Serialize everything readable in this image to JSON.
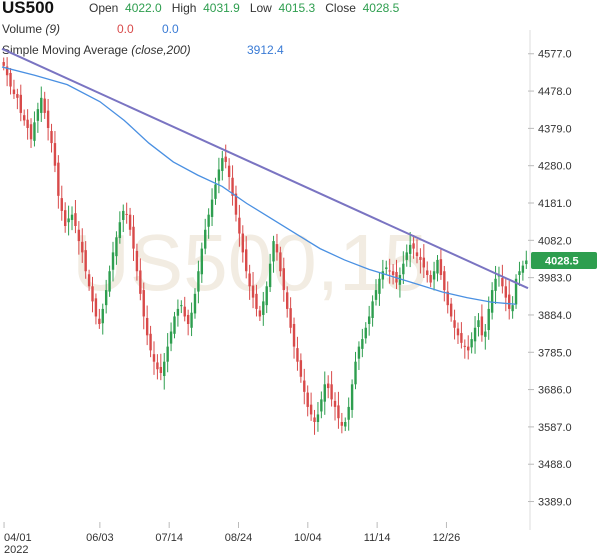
{
  "header": {
    "symbol": "US500",
    "open_label": "Open",
    "open_value": "4022.0",
    "high_label": "High",
    "high_value": "4031.9",
    "low_label": "Low",
    "low_value": "4015.3",
    "close_label": "Close",
    "close_value": "4028.5",
    "volume_label": "Volume",
    "volume_param": "(9)",
    "volume_value_1": "0.0",
    "volume_value_2": "0.0",
    "sma_label": "Simple Moving Average",
    "sma_param": "(close,200)",
    "sma_value": "3912.4"
  },
  "watermark": "US500,15",
  "price_tag": "4028.5",
  "colors": {
    "up": "#2e9e4f",
    "down": "#d84a4a",
    "sma": "#4a90e2",
    "trendline": "#7a74c2",
    "price_tag": "#2e9e4f"
  },
  "chart_data": {
    "type": "candlestick",
    "y_ticks": [
      "4577.0",
      "4478.0",
      "4379.0",
      "4280.0",
      "4181.0",
      "4082.0",
      "3983.0",
      "3884.0",
      "3785.0",
      "3686.0",
      "3587.0",
      "3488.0",
      "3389.0"
    ],
    "ylim": [
      3340,
      4640
    ],
    "x_ticks": [
      {
        "label": "04/01",
        "sub": "2022",
        "x": 0.5
      },
      {
        "label": "06/03",
        "sub": "",
        "x": 24
      },
      {
        "label": "07/14",
        "sub": "",
        "x": 41
      },
      {
        "label": "08/24",
        "sub": "",
        "x": 58
      },
      {
        "label": "10/04",
        "sub": "",
        "x": 75
      },
      {
        "label": "11/14",
        "sub": "",
        "x": 92
      },
      {
        "label": "12/26",
        "sub": "",
        "x": 109
      }
    ],
    "xlim": [
      0,
      129
    ],
    "closes": [
      4545,
      4520,
      4490,
      4470,
      4460,
      4420,
      4400,
      4380,
      4350,
      4395,
      4430,
      4460,
      4420,
      4380,
      4340,
      4280,
      4200,
      4160,
      4120,
      4140,
      4150,
      4120,
      4080,
      4050,
      4000,
      3960,
      3920,
      3880,
      3860,
      3900,
      3950,
      4000,
      4050,
      4090,
      4130,
      4160,
      4150,
      4110,
      4060,
      4000,
      3940,
      3880,
      3830,
      3790,
      3760,
      3740,
      3730,
      3760,
      3800,
      3840,
      3880,
      3900,
      3910,
      3880,
      3860,
      3890,
      3940,
      4000,
      4060,
      4110,
      4150,
      4190,
      4230,
      4270,
      4300,
      4290,
      4250,
      4200,
      4150,
      4100,
      4050,
      4000,
      3960,
      3930,
      3900,
      3880,
      3920,
      3960,
      4020,
      4080,
      4050,
      4000,
      3950,
      3900,
      3850,
      3800,
      3760,
      3720,
      3680,
      3640,
      3620,
      3600,
      3620,
      3660,
      3700,
      3690,
      3660,
      3640,
      3610,
      3590,
      3600,
      3640,
      3700,
      3760,
      3800,
      3820,
      3850,
      3880,
      3920,
      3950,
      3980,
      4000,
      4010,
      4000,
      3990,
      3970,
      3990,
      4020,
      4050,
      4070,
      4060,
      4040,
      4030,
      4010,
      3990,
      3970,
      4000,
      4030,
      3990,
      3950,
      3910,
      3880,
      3850,
      3830,
      3810,
      3800,
      3790,
      3820,
      3850,
      3870,
      3830,
      3840,
      3900,
      3950,
      3980,
      3990,
      3960,
      3930,
      3900,
      3910,
      3980,
      4000,
      4015,
      4028.5
    ],
    "sma": [
      {
        "x": 0,
        "y": 4542
      },
      {
        "x": 8,
        "y": 4520
      },
      {
        "x": 16,
        "y": 4495
      },
      {
        "x": 24,
        "y": 4450
      },
      {
        "x": 30,
        "y": 4400
      },
      {
        "x": 36,
        "y": 4340
      },
      {
        "x": 42,
        "y": 4290
      },
      {
        "x": 48,
        "y": 4255
      },
      {
        "x": 54,
        "y": 4225
      },
      {
        "x": 60,
        "y": 4180
      },
      {
        "x": 66,
        "y": 4140
      },
      {
        "x": 72,
        "y": 4100
      },
      {
        "x": 78,
        "y": 4060
      },
      {
        "x": 84,
        "y": 4030
      },
      {
        "x": 90,
        "y": 4005
      },
      {
        "x": 96,
        "y": 3985
      },
      {
        "x": 102,
        "y": 3965
      },
      {
        "x": 108,
        "y": 3945
      },
      {
        "x": 114,
        "y": 3930
      },
      {
        "x": 120,
        "y": 3918
      },
      {
        "x": 126,
        "y": 3912.4
      }
    ],
    "trendline": [
      {
        "x": 0,
        "y": 4590
      },
      {
        "x": 129,
        "y": 3955
      }
    ]
  }
}
